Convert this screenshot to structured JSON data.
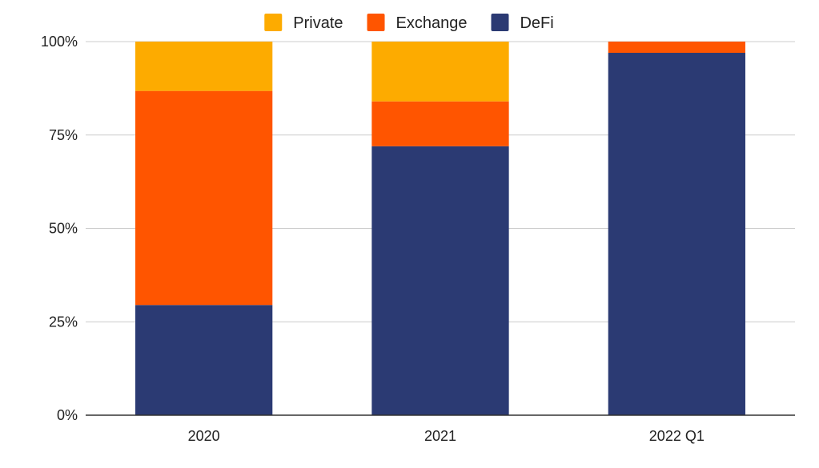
{
  "chart_data": {
    "type": "bar",
    "stacked": true,
    "normalized": true,
    "categories": [
      "2020",
      "2021",
      "2022 Q1"
    ],
    "series": [
      {
        "name": "DeFi",
        "color": "#2b3a73",
        "values": [
          29.5,
          72,
          97
        ]
      },
      {
        "name": "Exchange",
        "color": "#ff5500",
        "values": [
          57.3,
          12,
          3
        ]
      },
      {
        "name": "Private",
        "color": "#fdab00",
        "values": [
          13.2,
          16,
          0
        ]
      }
    ],
    "legend_order": [
      "Private",
      "Exchange",
      "DeFi"
    ],
    "legend_position": "top",
    "ylim": [
      0,
      100
    ],
    "yticks": [
      0,
      25,
      50,
      75,
      100
    ],
    "ytick_labels": [
      "0%",
      "25%",
      "50%",
      "75%",
      "100%"
    ],
    "grid": true,
    "title": "",
    "xlabel": "",
    "ylabel": ""
  }
}
